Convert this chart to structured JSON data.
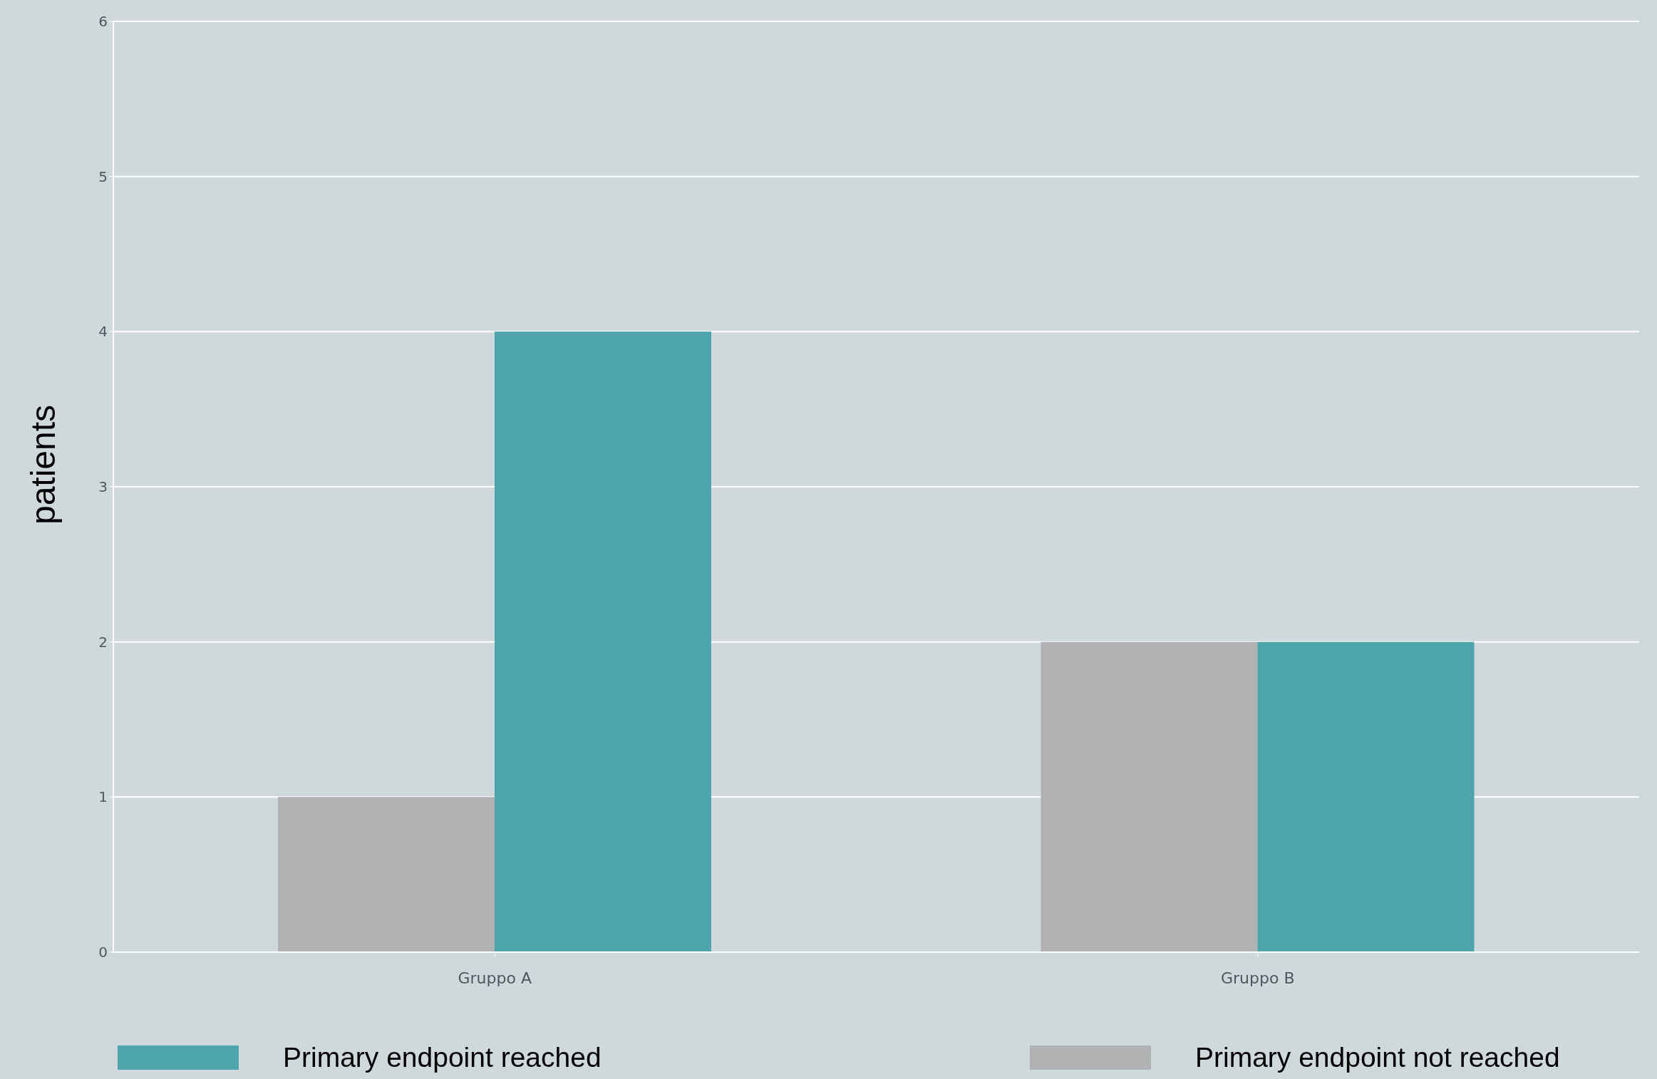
{
  "chart_data": {
    "type": "bar",
    "ylabel": "patients",
    "categories": [
      "Gruppo A",
      "Gruppo B"
    ],
    "series": [
      {
        "name": "Primary endpoint not reached",
        "color": "#b0b1b3",
        "values": [
          1,
          2
        ]
      },
      {
        "name": "Primary endpoint reached",
        "color": "#4ea4ac",
        "values": [
          4,
          2
        ]
      }
    ],
    "ylim": [
      0,
      6
    ],
    "yticks": [
      0,
      1,
      2,
      3,
      4,
      5,
      6
    ],
    "grid": "y",
    "legend": "bottom"
  }
}
